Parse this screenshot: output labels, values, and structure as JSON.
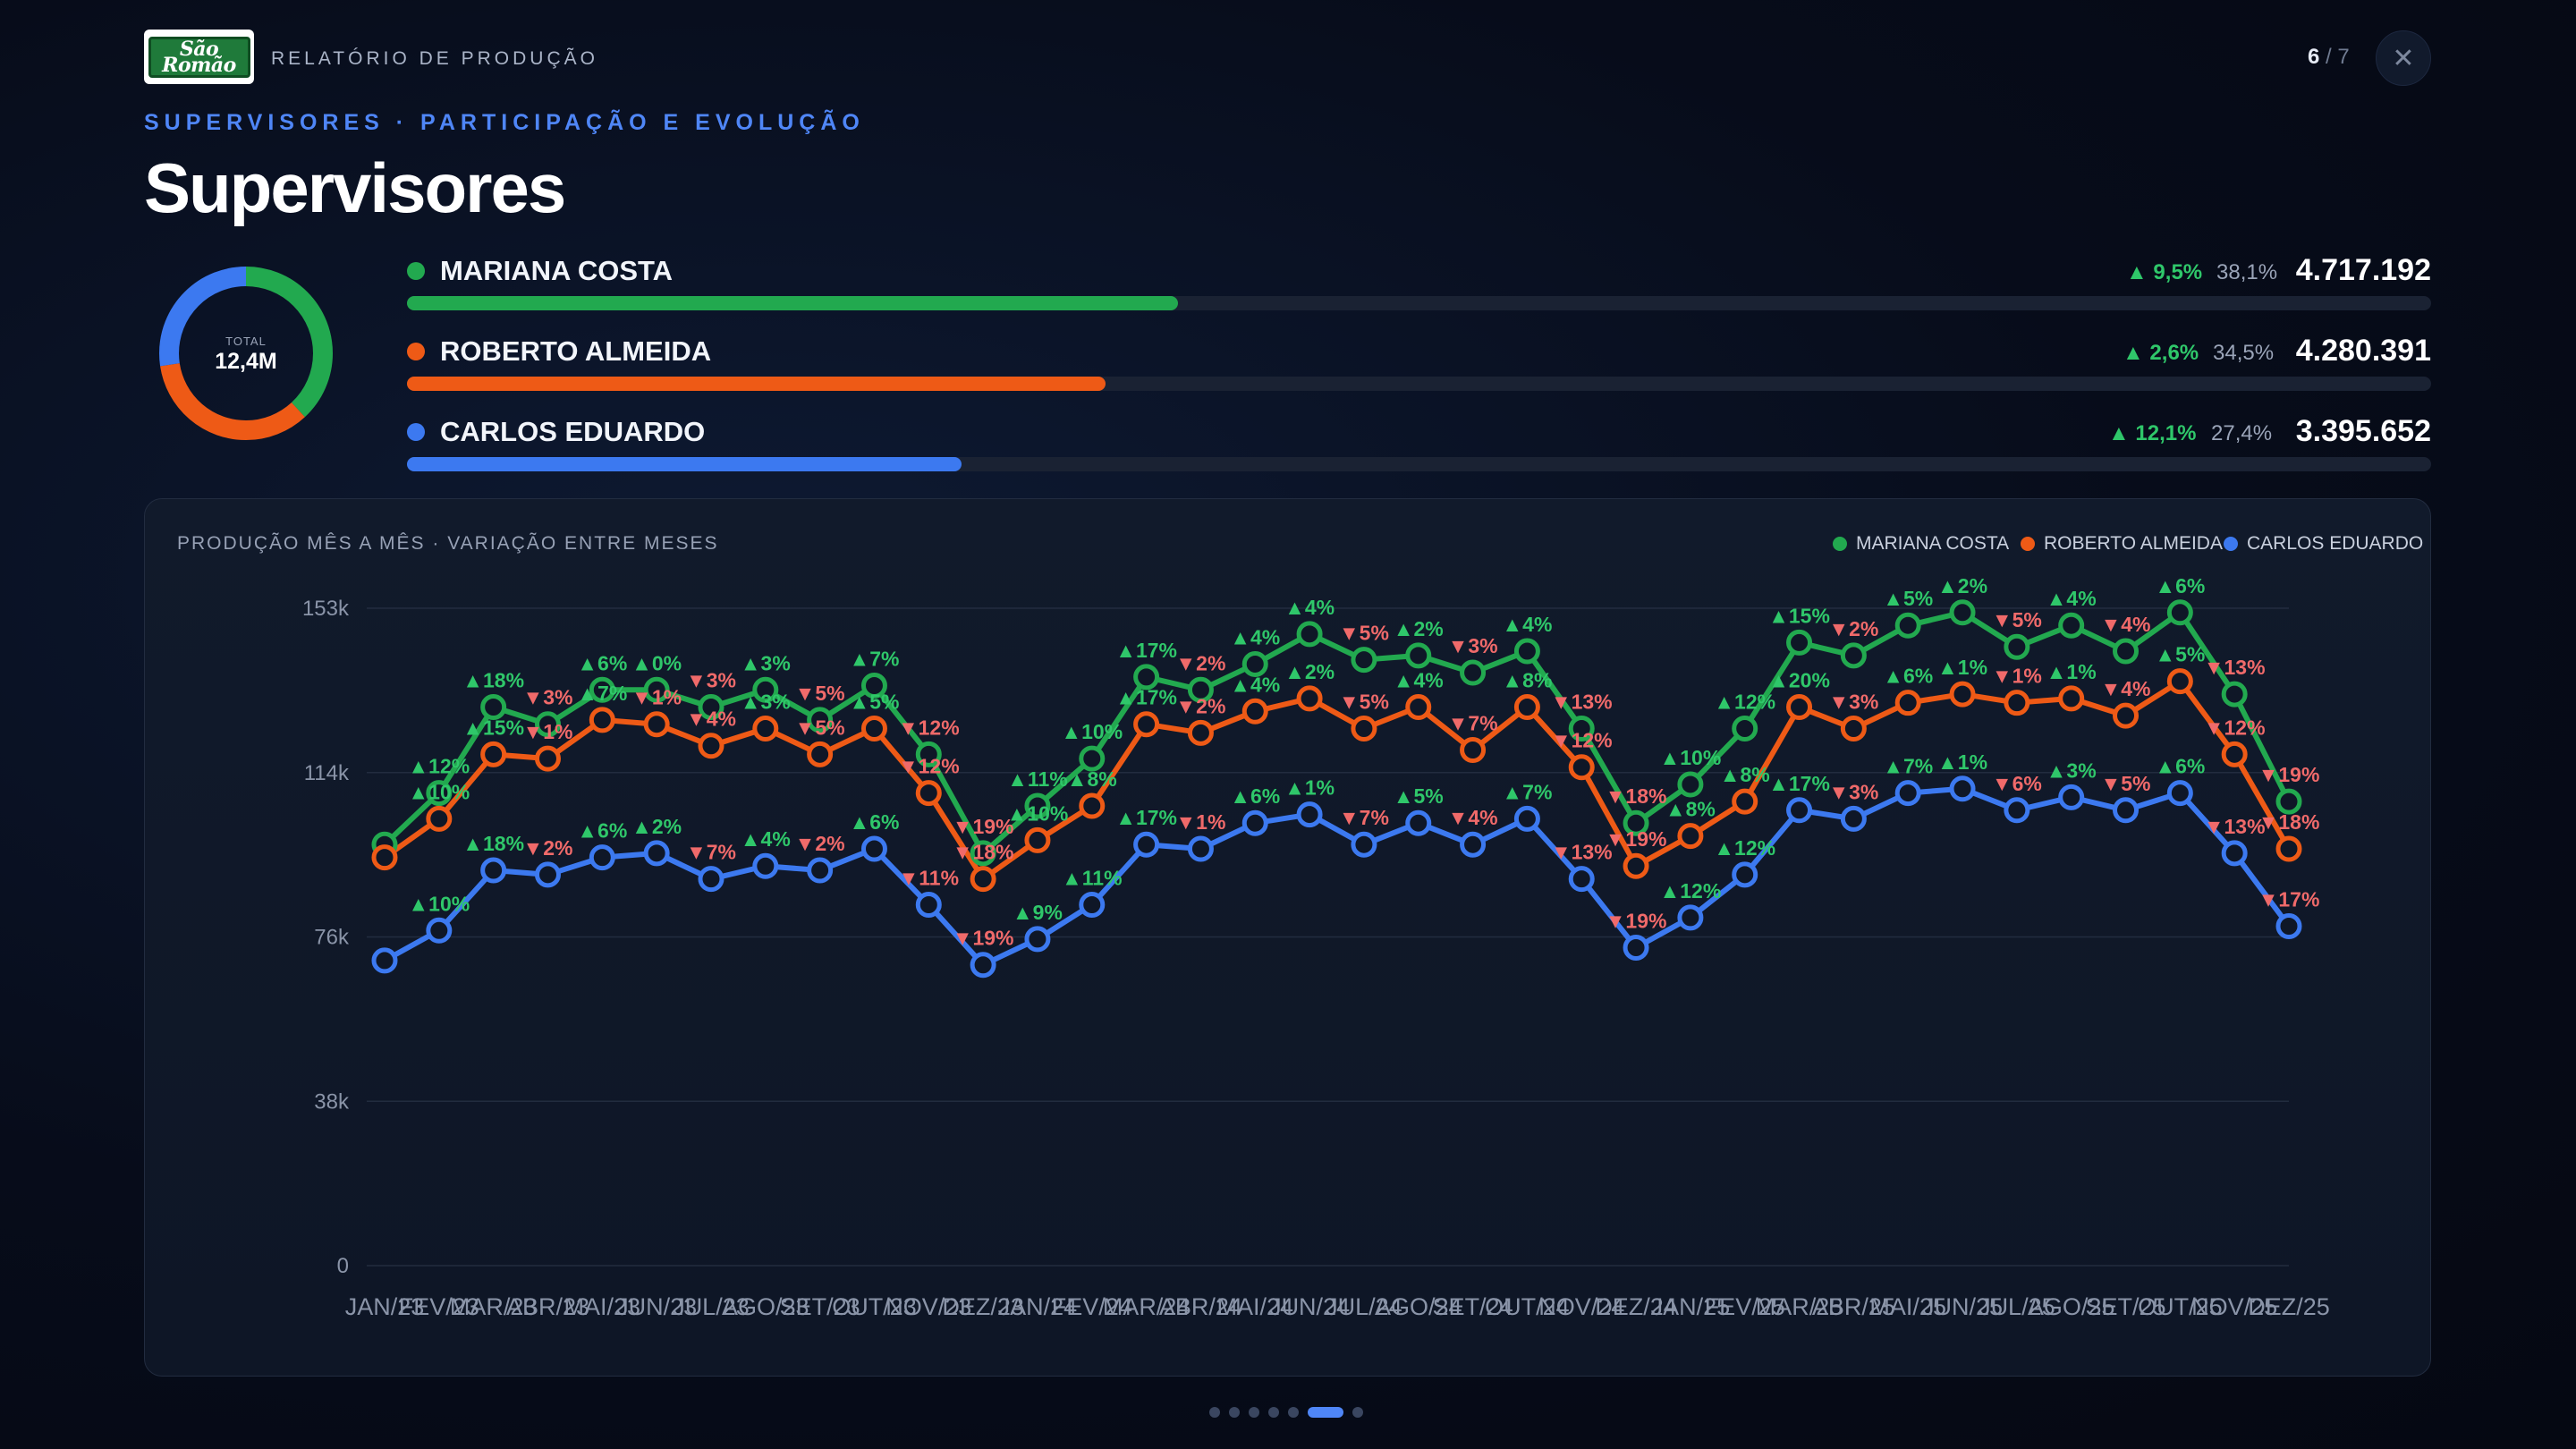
{
  "header": {
    "logo_text": "São Romão",
    "report_label": "RELATÓRIO DE PRODUÇÃO",
    "page_current": "6",
    "page_total": "/ 7",
    "close_icon": "close-icon"
  },
  "subtitle": "SUPERVISORES · PARTICIPAÇÃO E EVOLUÇÃO",
  "title": "Supervisores",
  "donut": {
    "label": "TOTAL",
    "value": "12,4M",
    "shares": [
      38.1,
      34.5,
      27.4
    ],
    "colors": [
      "#22a94f",
      "#ee5a16",
      "#3c79f0"
    ]
  },
  "supervisors": [
    {
      "name": "MARIANA COSTA",
      "variation": "▲ 9,5%",
      "share": "38,1%",
      "total": "4.717.192",
      "color": "#22a94f",
      "bar_fraction": 0.381
    },
    {
      "name": "ROBERTO ALMEIDA",
      "variation": "▲ 2,6%",
      "share": "34,5%",
      "total": "4.280.391",
      "color": "#ee5a16",
      "bar_fraction": 0.345
    },
    {
      "name": "CARLOS EDUARDO",
      "variation": "▲ 12,1%",
      "share": "27,4%",
      "total": "3.395.652",
      "color": "#3c79f0",
      "bar_fraction": 0.274
    }
  ],
  "chart_caption": "PRODUÇÃO MÊS A MÊS · VARIAÇÃO ENTRE MESES",
  "legend": [
    "MARIANA COSTA",
    "ROBERTO ALMEIDA",
    "CARLOS EDUARDO"
  ],
  "chart_data": {
    "type": "line",
    "y_ticks": [
      "0",
      "38k",
      "76k",
      "114k",
      "153k"
    ],
    "ylim": [
      0,
      153000
    ],
    "grid": true,
    "legend_position": "top-right",
    "categories": [
      "JAN/23",
      "FEV/23",
      "MAR/23",
      "ABR/23",
      "MAI/23",
      "JUN/23",
      "JUL/23",
      "AGO/23",
      "SET/23",
      "OUT/23",
      "NOV/23",
      "DEZ/23",
      "JAN/24",
      "FEV/24",
      "MAR/24",
      "ABR/24",
      "MAI/24",
      "JUN/24",
      "JUL/24",
      "AGO/24",
      "SET/24",
      "OUT/24",
      "NOV/24",
      "DEZ/24",
      "JAN/25",
      "FEV/25",
      "MAR/25",
      "ABR/25",
      "MAI/25",
      "JUN/25",
      "JUL/25",
      "AGO/25",
      "SET/25",
      "OUT/25",
      "NOV/25",
      "DEZ/25"
    ],
    "series": [
      {
        "name": "MARIANA COSTA",
        "color": "#22a94f",
        "values": [
          98000,
          110000,
          130000,
          126000,
          134000,
          134000,
          130000,
          134000,
          127000,
          135000,
          119000,
          96000,
          107000,
          118000,
          137000,
          134000,
          140000,
          147000,
          141000,
          142000,
          138000,
          143000,
          125000,
          103000,
          112000,
          125000,
          145000,
          142000,
          149000,
          152000,
          144000,
          149000,
          143000,
          152000,
          133000,
          108000
        ],
        "labels": [
          "",
          "▲12%",
          "▲18%",
          "▼3%",
          "▲6%",
          "▲0%",
          "▼3%",
          "▲3%",
          "▼5%",
          "▲7%",
          "▼12%",
          "▼19%",
          "▲11%",
          "▲10%",
          "▲17%",
          "▼2%",
          "▲4%",
          "▲4%",
          "▼5%",
          "▲2%",
          "▼3%",
          "▲4%",
          "▼13%",
          "▼18%",
          "▲10%",
          "▲12%",
          "▲15%",
          "▼2%",
          "▲5%",
          "▲2%",
          "▼5%",
          "▲4%",
          "▼4%",
          "▲6%",
          "▼13%",
          "▼19%"
        ]
      },
      {
        "name": "ROBERTO ALMEIDA",
        "color": "#ee5a16",
        "values": [
          95000,
          104000,
          119000,
          118000,
          127000,
          126000,
          121000,
          125000,
          119000,
          125000,
          110000,
          90000,
          99000,
          107000,
          126000,
          124000,
          129000,
          132000,
          125000,
          130000,
          120000,
          130000,
          116000,
          93000,
          100000,
          108000,
          130000,
          125000,
          131000,
          133000,
          131000,
          132000,
          128000,
          136000,
          119000,
          97000
        ],
        "labels": [
          "",
          "▲10%",
          "▲15%",
          "▼1%",
          "▲7%",
          "▼1%",
          "▼4%",
          "▲3%",
          "▼5%",
          "▲5%",
          "▼12%",
          "▼18%",
          "▲10%",
          "▲8%",
          "▲17%",
          "▼2%",
          "▲4%",
          "▲2%",
          "▼5%",
          "▲4%",
          "▼7%",
          "▲8%",
          "▼12%",
          "▼19%",
          "▲8%",
          "▲8%",
          "▲20%",
          "▼3%",
          "▲6%",
          "▲1%",
          "▼1%",
          "▲1%",
          "▼4%",
          "▲5%",
          "▼12%",
          "▼18%"
        ]
      },
      {
        "name": "CARLOS EDUARDO",
        "color": "#3c79f0",
        "values": [
          71000,
          78000,
          92000,
          91000,
          95000,
          96000,
          90000,
          93000,
          92000,
          97000,
          84000,
          70000,
          76000,
          84000,
          98000,
          97000,
          103000,
          105000,
          98000,
          103000,
          98000,
          104000,
          90000,
          74000,
          81000,
          91000,
          106000,
          104000,
          110000,
          111000,
          106000,
          109000,
          106000,
          110000,
          96000,
          79000
        ],
        "labels": [
          "",
          "▲10%",
          "▲18%",
          "▼2%",
          "▲6%",
          "▲2%",
          "▼7%",
          "▲4%",
          "▼2%",
          "▲6%",
          "▼11%",
          "▼19%",
          "▲9%",
          "▲11%",
          "▲17%",
          "▼1%",
          "▲6%",
          "▲1%",
          "▼7%",
          "▲5%",
          "▼4%",
          "▲7%",
          "▼13%",
          "▼19%",
          "▲12%",
          "▲12%",
          "▲17%",
          "▼3%",
          "▲7%",
          "▲1%",
          "▼6%",
          "▲3%",
          "▼5%",
          "▲6%",
          "▼13%",
          "▼17%"
        ]
      }
    ]
  },
  "pagination": {
    "count": 7,
    "active": 6
  }
}
